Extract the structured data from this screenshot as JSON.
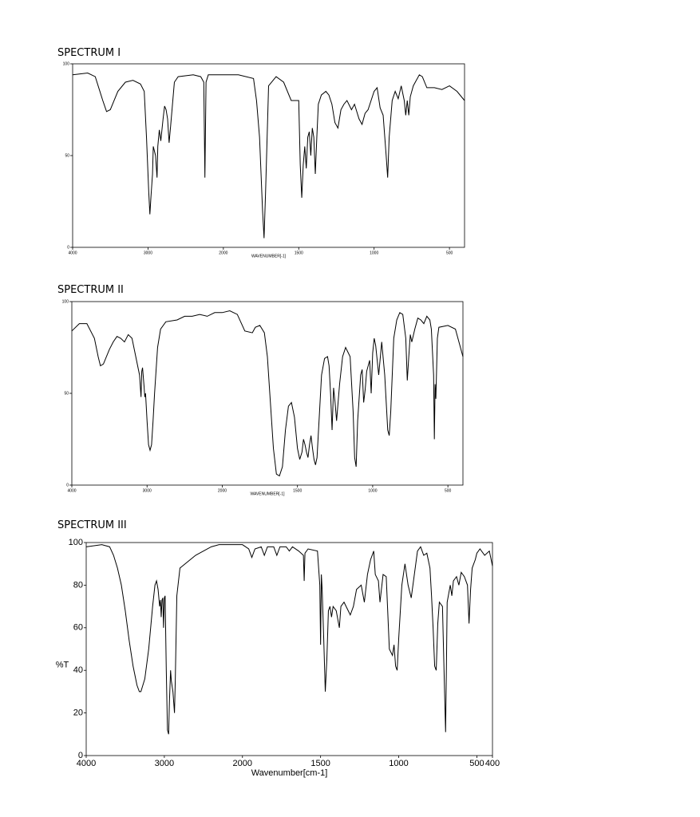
{
  "chart_data": [
    {
      "type": "line",
      "title": "SPECTRUM I",
      "x_label": "WAVENUMBER[-1]",
      "color": "#000000",
      "xlim": [
        4000,
        400
      ],
      "x_scale_change": 2000,
      "xticks": [
        4000,
        3000,
        2000,
        1500,
        1000,
        500
      ],
      "ylim": [
        0,
        100
      ],
      "yticks": [
        0,
        50,
        100
      ],
      "x": [
        4000,
        3800,
        3700,
        3600,
        3550,
        3500,
        3400,
        3300,
        3200,
        3100,
        3050,
        3020,
        2990,
        2975,
        2960,
        2940,
        2930,
        2900,
        2880,
        2870,
        2850,
        2830,
        2800,
        2780,
        2760,
        2740,
        2720,
        2700,
        2650,
        2600,
        2400,
        2300,
        2260,
        2245,
        2230,
        2200,
        2000,
        1900,
        1800,
        1780,
        1760,
        1740,
        1730,
        1720,
        1700,
        1650,
        1600,
        1550,
        1500,
        1490,
        1480,
        1470,
        1460,
        1450,
        1440,
        1430,
        1420,
        1410,
        1400,
        1390,
        1380,
        1370,
        1350,
        1320,
        1300,
        1280,
        1260,
        1240,
        1220,
        1200,
        1180,
        1150,
        1130,
        1100,
        1080,
        1060,
        1040,
        1000,
        980,
        960,
        940,
        920,
        910,
        900,
        880,
        860,
        840,
        820,
        800,
        790,
        780,
        770,
        760,
        740,
        700,
        680,
        650,
        600,
        550,
        500,
        450,
        400
      ],
      "values": [
        94,
        95,
        93,
        80,
        74,
        75,
        85,
        90,
        91,
        89,
        85,
        60,
        30,
        18,
        28,
        40,
        55,
        50,
        38,
        55,
        64,
        58,
        70,
        77,
        75,
        70,
        57,
        66,
        90,
        93,
        94,
        93,
        90,
        38,
        90,
        94,
        94,
        94,
        92,
        80,
        60,
        20,
        5,
        30,
        88,
        93,
        90,
        80,
        80,
        45,
        27,
        45,
        55,
        43,
        60,
        63,
        50,
        65,
        60,
        40,
        60,
        78,
        83,
        85,
        83,
        78,
        68,
        65,
        75,
        78,
        80,
        75,
        78,
        70,
        67,
        73,
        75,
        85,
        87,
        76,
        72,
        50,
        38,
        60,
        80,
        85,
        81,
        88,
        80,
        72,
        80,
        72,
        82,
        88,
        94,
        93,
        87,
        87,
        86,
        88,
        85,
        80
      ]
    },
    {
      "type": "line",
      "title": "SPECTRUM II",
      "x_label": "WAVENUMBER[-1]",
      "color": "#000000",
      "xlim": [
        4000,
        400
      ],
      "x_scale_change": 2000,
      "xticks": [
        4000,
        3000,
        2000,
        1500,
        1000,
        500
      ],
      "ylim": [
        0,
        100
      ],
      "yticks": [
        0,
        50,
        100
      ],
      "x": [
        4000,
        3900,
        3800,
        3700,
        3650,
        3620,
        3580,
        3500,
        3450,
        3400,
        3350,
        3300,
        3250,
        3200,
        3150,
        3100,
        3080,
        3070,
        3060,
        3040,
        3030,
        3020,
        3000,
        2980,
        2960,
        2940,
        2920,
        2900,
        2860,
        2820,
        2750,
        2600,
        2500,
        2400,
        2300,
        2200,
        2100,
        2000,
        1950,
        1900,
        1850,
        1800,
        1780,
        1750,
        1720,
        1700,
        1680,
        1660,
        1640,
        1620,
        1600,
        1580,
        1560,
        1540,
        1520,
        1500,
        1485,
        1470,
        1460,
        1450,
        1440,
        1430,
        1420,
        1410,
        1400,
        1390,
        1380,
        1370,
        1360,
        1340,
        1320,
        1300,
        1290,
        1280,
        1270,
        1260,
        1250,
        1240,
        1220,
        1200,
        1180,
        1150,
        1130,
        1120,
        1110,
        1100,
        1080,
        1070,
        1060,
        1050,
        1040,
        1020,
        1010,
        1000,
        990,
        980,
        960,
        940,
        920,
        900,
        890,
        880,
        860,
        840,
        820,
        800,
        780,
        770,
        760,
        750,
        740,
        720,
        700,
        680,
        660,
        640,
        620,
        610,
        595,
        590,
        585,
        580,
        570,
        560,
        500,
        450,
        400
      ],
      "values": [
        84,
        88,
        88,
        80,
        70,
        65,
        66,
        74,
        78,
        81,
        80,
        78,
        82,
        80,
        70,
        60,
        48,
        62,
        64,
        54,
        48,
        50,
        35,
        22,
        19,
        22,
        35,
        50,
        75,
        85,
        89,
        90,
        92,
        92,
        93,
        92,
        94,
        94,
        95,
        93,
        84,
        83,
        86,
        87,
        83,
        70,
        45,
        20,
        6,
        5,
        10,
        30,
        43,
        45,
        37,
        20,
        14,
        18,
        25,
        22,
        18,
        15,
        22,
        27,
        20,
        14,
        11,
        15,
        30,
        60,
        69,
        70,
        65,
        50,
        30,
        53,
        45,
        35,
        55,
        70,
        75,
        70,
        40,
        15,
        10,
        35,
        60,
        63,
        45,
        52,
        62,
        68,
        50,
        72,
        80,
        76,
        60,
        78,
        60,
        30,
        27,
        40,
        80,
        90,
        94,
        93,
        80,
        57,
        70,
        82,
        78,
        85,
        91,
        90,
        88,
        92,
        90,
        85,
        60,
        25,
        55,
        47,
        80,
        86,
        87,
        85,
        70
      ]
    },
    {
      "type": "line",
      "title": "SPECTRUM III",
      "x_label": "Wavenumber[cm-1]",
      "y_label": "%T",
      "color": "#000000",
      "xlim": [
        4000,
        400
      ],
      "x_scale_change": 2000,
      "xticks": [
        4000,
        3000,
        2000,
        1500,
        1000,
        500,
        400
      ],
      "ylim": [
        0,
        100
      ],
      "yticks": [
        0,
        20,
        40,
        60,
        80,
        100
      ],
      "x": [
        4000,
        3800,
        3700,
        3650,
        3600,
        3550,
        3500,
        3450,
        3400,
        3350,
        3320,
        3300,
        3250,
        3200,
        3150,
        3120,
        3100,
        3080,
        3060,
        3050,
        3040,
        3030,
        3020,
        3010,
        3000,
        2990,
        2975,
        2960,
        2945,
        2935,
        2920,
        2910,
        2890,
        2870,
        2860,
        2840,
        2800,
        2700,
        2600,
        2500,
        2400,
        2300,
        2100,
        2000,
        1960,
        1940,
        1920,
        1880,
        1860,
        1840,
        1800,
        1780,
        1760,
        1720,
        1700,
        1680,
        1640,
        1610,
        1605,
        1600,
        1580,
        1520,
        1505,
        1500,
        1495,
        1490,
        1480,
        1470,
        1460,
        1450,
        1440,
        1430,
        1420,
        1400,
        1380,
        1370,
        1350,
        1330,
        1310,
        1290,
        1270,
        1240,
        1220,
        1200,
        1180,
        1160,
        1150,
        1130,
        1120,
        1100,
        1080,
        1060,
        1040,
        1030,
        1020,
        1010,
        1000,
        980,
        960,
        940,
        920,
        900,
        880,
        860,
        840,
        820,
        800,
        790,
        780,
        770,
        760,
        750,
        740,
        720,
        710,
        700,
        695,
        690,
        680,
        670,
        660,
        650,
        630,
        615,
        600,
        580,
        560,
        550,
        540,
        530,
        510,
        500,
        480,
        450,
        420,
        400
      ],
      "values": [
        98,
        99,
        98,
        94,
        88,
        80,
        68,
        54,
        42,
        33,
        30,
        30,
        36,
        50,
        70,
        80,
        82,
        78,
        70,
        73,
        65,
        73,
        74,
        60,
        74,
        75,
        40,
        12,
        10,
        25,
        40,
        35,
        30,
        20,
        35,
        75,
        88,
        91,
        94,
        96,
        98,
        99,
        99,
        99,
        97,
        93,
        97,
        98,
        94,
        98,
        98,
        94,
        98,
        98,
        96,
        98,
        96,
        94,
        82,
        95,
        97,
        96,
        80,
        52,
        85,
        78,
        55,
        30,
        45,
        68,
        70,
        65,
        70,
        68,
        60,
        70,
        72,
        69,
        66,
        70,
        78,
        80,
        72,
        85,
        92,
        96,
        85,
        82,
        72,
        85,
        84,
        50,
        47,
        52,
        42,
        40,
        55,
        80,
        90,
        80,
        74,
        85,
        96,
        98,
        94,
        95,
        88,
        75,
        60,
        42,
        40,
        62,
        72,
        70,
        40,
        11,
        40,
        72,
        76,
        80,
        75,
        82,
        84,
        80,
        86,
        84,
        80,
        62,
        78,
        88,
        92,
        95,
        97,
        94,
        96,
        89
      ]
    }
  ]
}
